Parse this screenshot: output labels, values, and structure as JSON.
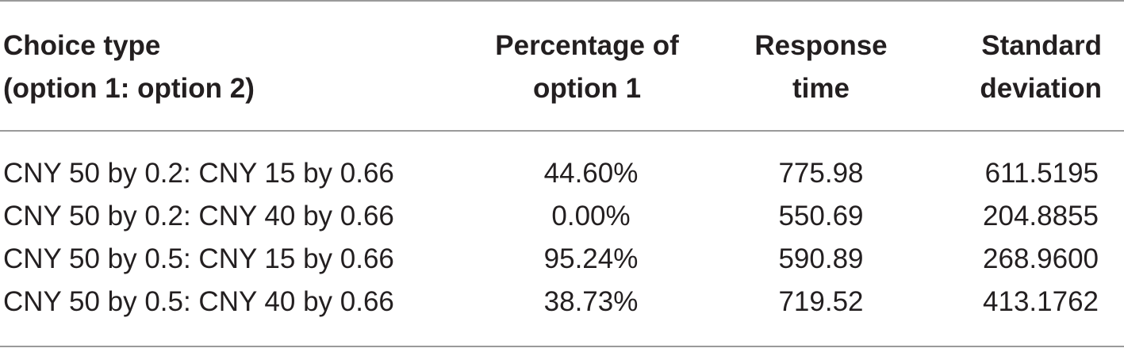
{
  "table": {
    "headers": [
      {
        "line1": "Choice type",
        "line2": "(option 1: option 2)"
      },
      {
        "line1": "Percentage of",
        "line2": "option 1"
      },
      {
        "line1": "Response",
        "line2": "time"
      },
      {
        "line1": "Standard",
        "line2": "deviation"
      }
    ],
    "rows": [
      {
        "choice": "CNY 50 by 0.2: CNY 15 by 0.66",
        "percentage": "44.60%",
        "response_time": "775.98",
        "std_dev": "611.5195"
      },
      {
        "choice": "CNY 50 by 0.2: CNY 40 by 0.66",
        "percentage": "0.00%",
        "response_time": "550.69",
        "std_dev": "204.8855"
      },
      {
        "choice": "CNY 50 by 0.5: CNY 15 by 0.66",
        "percentage": "95.24%",
        "response_time": "590.89",
        "std_dev": "268.9600"
      },
      {
        "choice": "CNY 50 by 0.5: CNY 40 by 0.66",
        "percentage": "38.73%",
        "response_time": "719.52",
        "std_dev": "413.1762"
      }
    ]
  }
}
